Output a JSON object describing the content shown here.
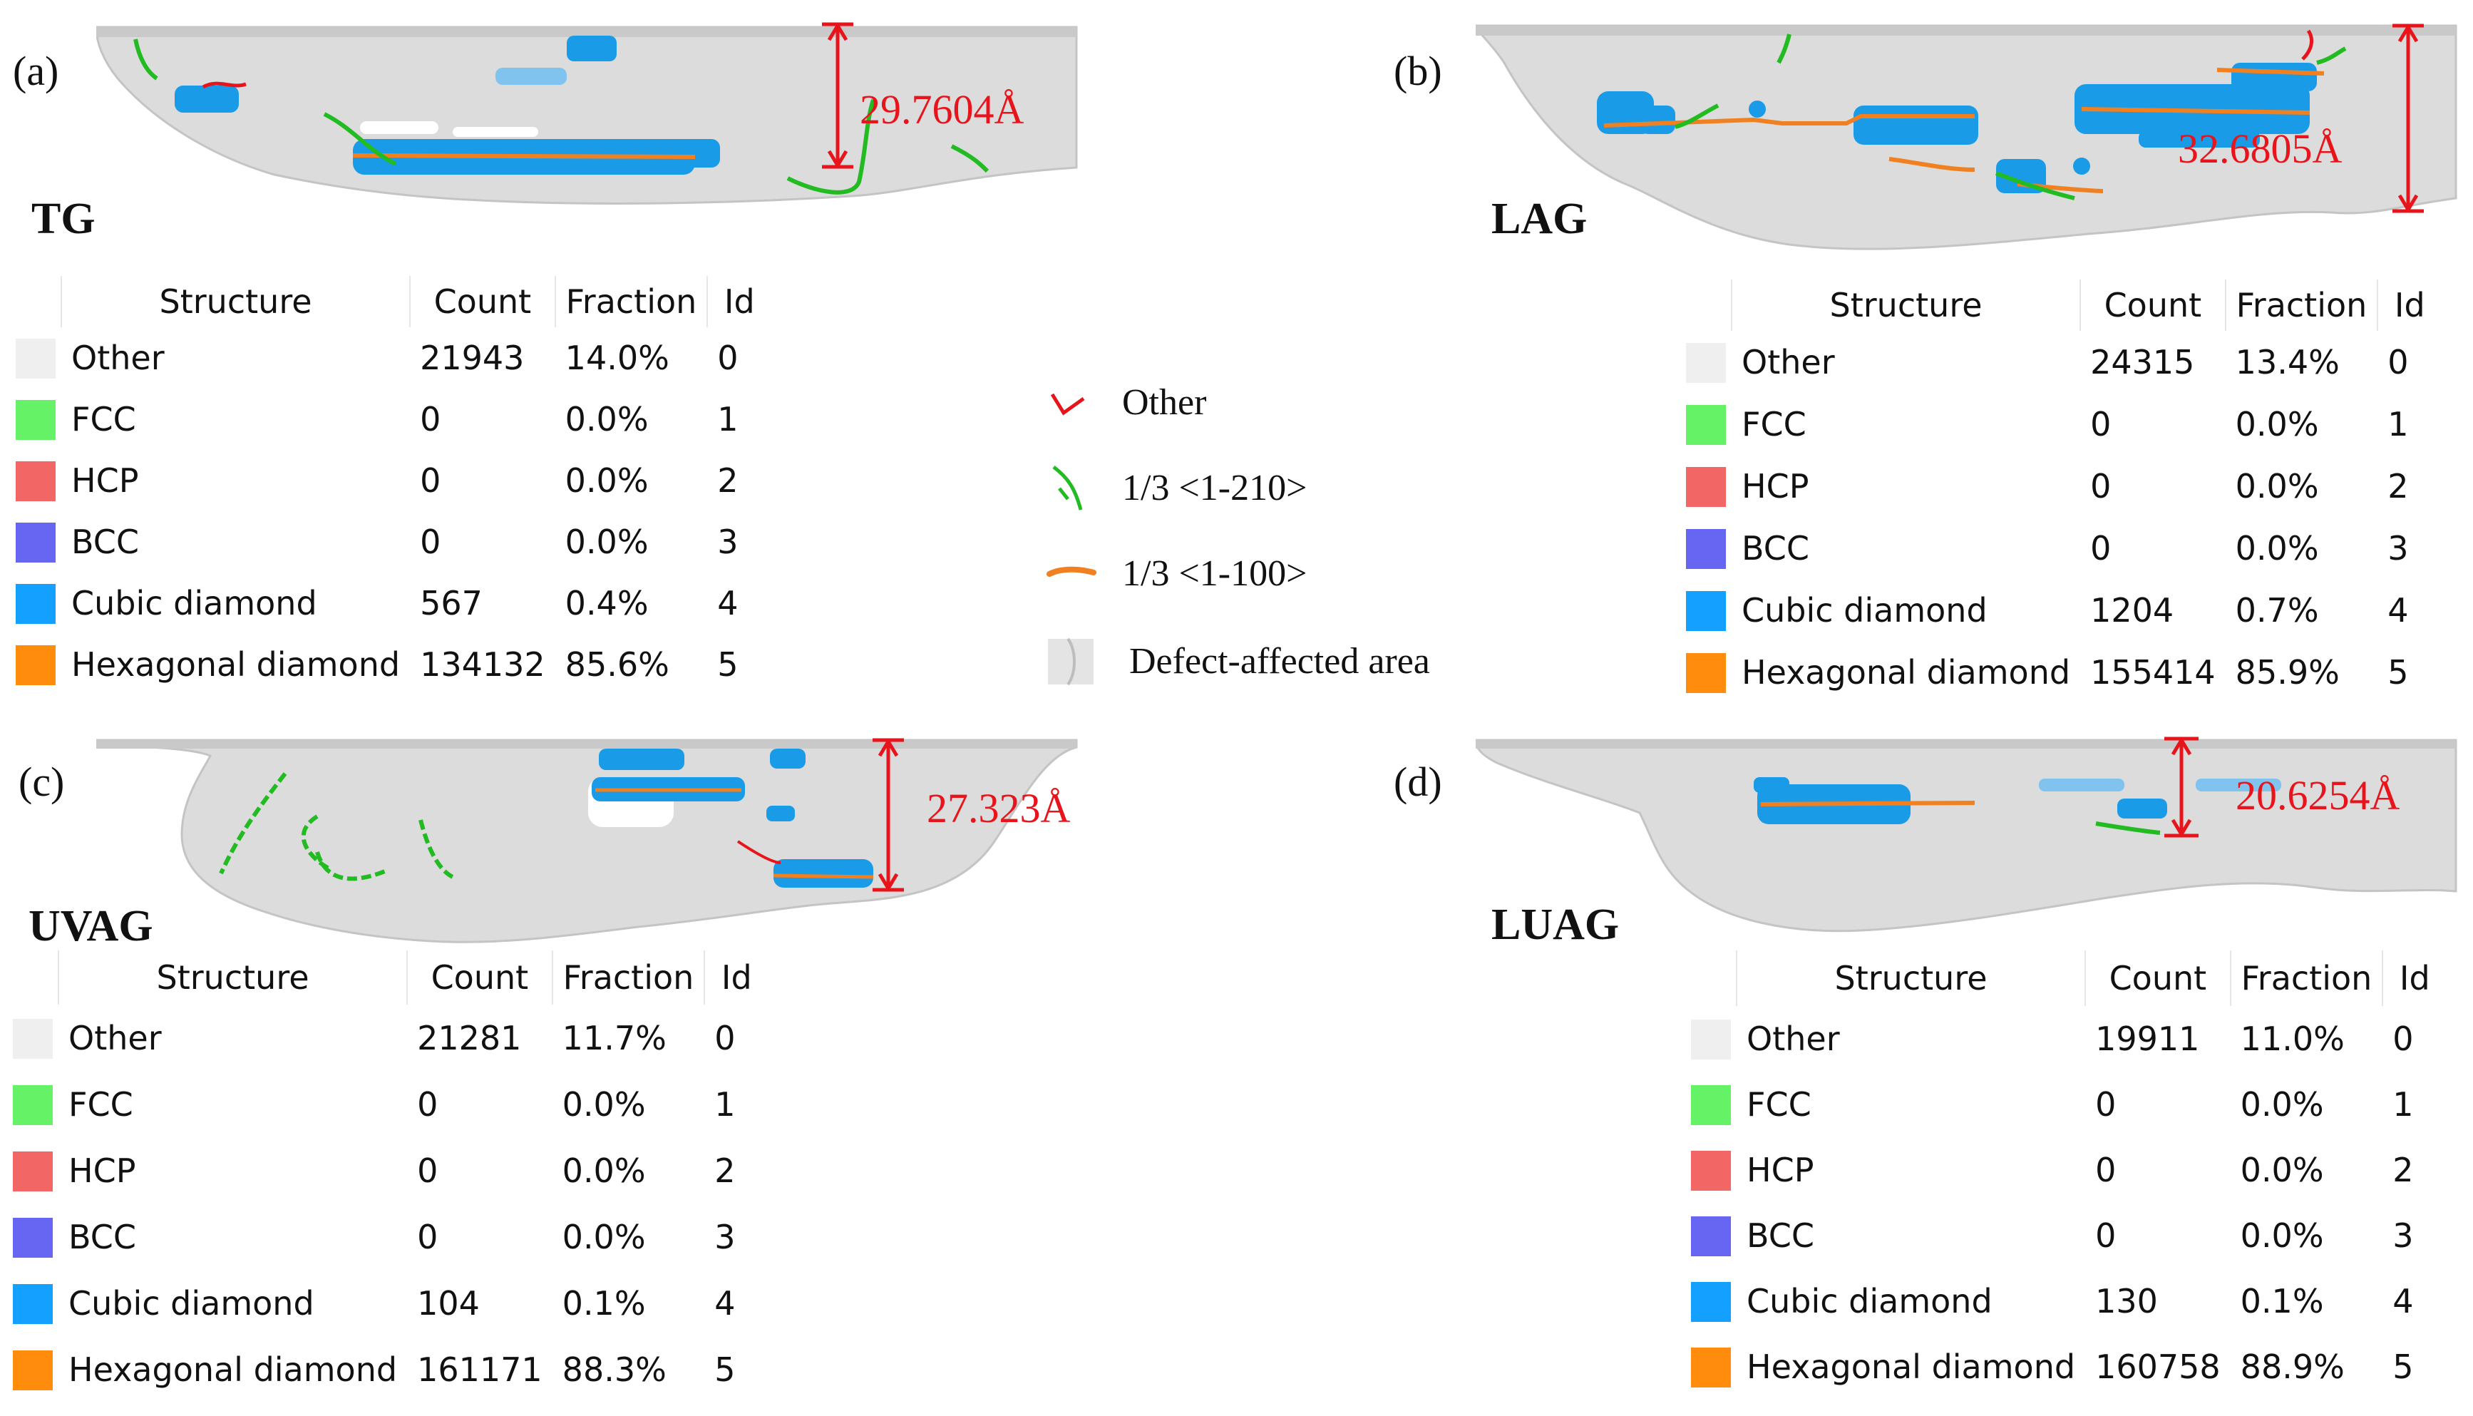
{
  "columns": {
    "structure": "Structure",
    "count": "Count",
    "fraction": "Fraction",
    "id": "Id"
  },
  "panels": [
    {
      "label": "(a)",
      "name": "TG",
      "thickness": "29.7604Å",
      "rows": [
        {
          "structure": "Other",
          "count": "21943",
          "fraction": "14.0%",
          "id": "0",
          "color": "#efefef"
        },
        {
          "structure": "FCC",
          "count": "0",
          "fraction": "0.0%",
          "id": "1",
          "color": "#66f266"
        },
        {
          "structure": "HCP",
          "count": "0",
          "fraction": "0.0%",
          "id": "2",
          "color": "#f26666"
        },
        {
          "structure": "BCC",
          "count": "0",
          "fraction": "0.0%",
          "id": "3",
          "color": "#6666f2"
        },
        {
          "structure": "Cubic diamond",
          "count": "567",
          "fraction": "0.4%",
          "id": "4",
          "color": "#14a0ff"
        },
        {
          "structure": "Hexagonal diamond",
          "count": "134132",
          "fraction": "85.6%",
          "id": "5",
          "color": "#ff8c0c"
        }
      ]
    },
    {
      "label": "(b)",
      "name": "LAG",
      "thickness": "32.6805Å",
      "rows": [
        {
          "structure": "Other",
          "count": "24315",
          "fraction": "13.4%",
          "id": "0",
          "color": "#efefef"
        },
        {
          "structure": "FCC",
          "count": "0",
          "fraction": "0.0%",
          "id": "1",
          "color": "#66f266"
        },
        {
          "structure": "HCP",
          "count": "0",
          "fraction": "0.0%",
          "id": "2",
          "color": "#f26666"
        },
        {
          "structure": "BCC",
          "count": "0",
          "fraction": "0.0%",
          "id": "3",
          "color": "#6666f2"
        },
        {
          "structure": "Cubic diamond",
          "count": "1204",
          "fraction": "0.7%",
          "id": "4",
          "color": "#14a0ff"
        },
        {
          "structure": "Hexagonal diamond",
          "count": "155414",
          "fraction": "85.9%",
          "id": "5",
          "color": "#ff8c0c"
        }
      ]
    },
    {
      "label": "(c)",
      "name": "UVAG",
      "thickness": "27.323Å",
      "rows": [
        {
          "structure": "Other",
          "count": "21281",
          "fraction": "11.7%",
          "id": "0",
          "color": "#efefef"
        },
        {
          "structure": "FCC",
          "count": "0",
          "fraction": "0.0%",
          "id": "1",
          "color": "#66f266"
        },
        {
          "structure": "HCP",
          "count": "0",
          "fraction": "0.0%",
          "id": "2",
          "color": "#f26666"
        },
        {
          "structure": "BCC",
          "count": "0",
          "fraction": "0.0%",
          "id": "3",
          "color": "#6666f2"
        },
        {
          "structure": "Cubic diamond",
          "count": "104",
          "fraction": "0.1%",
          "id": "4",
          "color": "#14a0ff"
        },
        {
          "structure": "Hexagonal diamond",
          "count": "161171",
          "fraction": "88.3%",
          "id": "5",
          "color": "#ff8c0c"
        }
      ]
    },
    {
      "label": "(d)",
      "name": "LUAG",
      "thickness": "20.6254Å",
      "rows": [
        {
          "structure": "Other",
          "count": "19911",
          "fraction": "11.0%",
          "id": "0",
          "color": "#efefef"
        },
        {
          "structure": "FCC",
          "count": "0",
          "fraction": "0.0%",
          "id": "1",
          "color": "#66f266"
        },
        {
          "structure": "HCP",
          "count": "0",
          "fraction": "0.0%",
          "id": "2",
          "color": "#f26666"
        },
        {
          "structure": "BCC",
          "count": "0",
          "fraction": "0.0%",
          "id": "3",
          "color": "#6666f2"
        },
        {
          "structure": "Cubic diamond",
          "count": "130",
          "fraction": "0.1%",
          "id": "4",
          "color": "#14a0ff"
        },
        {
          "structure": "Hexagonal diamond",
          "count": "160758",
          "fraction": "88.9%",
          "id": "5",
          "color": "#ff8c0c"
        }
      ]
    }
  ],
  "legend": {
    "other": "Other",
    "other_color": "#e8141c",
    "burgers_1210": "1/3 <1-210>",
    "burgers_1210_color": "#22bb22",
    "burgers_1100": "1/3 <1-100>",
    "burgers_1100_color": "#f08020",
    "defect_area": "Defect-affected area"
  },
  "colors": {
    "dimension": "#e8141c",
    "atom_gray": "#d6d6d6",
    "cubic_diamond": "#1a9be8"
  }
}
